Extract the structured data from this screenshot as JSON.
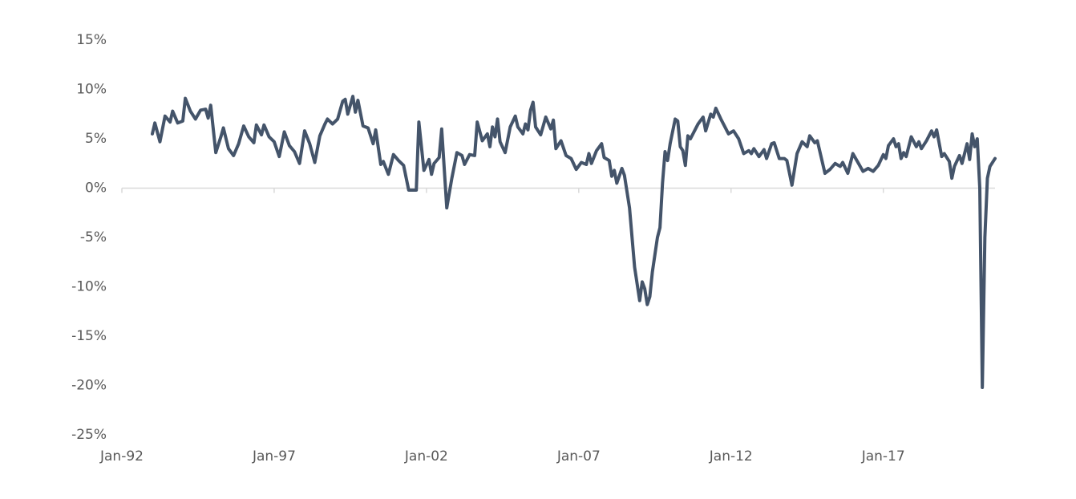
{
  "chart_data": {
    "type": "line",
    "color": "#44546a",
    "x": [
      "Jan-93",
      "Feb-93",
      "Apr-93",
      "Jun-93",
      "Aug-93",
      "Sep-93",
      "Nov-93",
      "Jan-94",
      "Feb-94",
      "Apr-94",
      "Jun-94",
      "Aug-94",
      "Oct-94",
      "Nov-94",
      "Dec-94",
      "Feb-95",
      "Apr-95",
      "May-95",
      "Jul-95",
      "Sep-95",
      "Nov-95",
      "Jan-96",
      "Mar-96",
      "May-96",
      "Jun-96",
      "Aug-96",
      "Sep-96",
      "Nov-96",
      "Jan-97",
      "Mar-97",
      "May-97",
      "Jul-97",
      "Sep-97",
      "Nov-97",
      "Jan-98",
      "Mar-98",
      "May-98",
      "Jul-98",
      "Sep-98",
      "Oct-98",
      "Dec-98",
      "Feb-99",
      "Apr-99",
      "May-99",
      "Jun-99",
      "Aug-99",
      "Sep-99",
      "Oct-99",
      "Dec-99",
      "Feb-00",
      "Apr-00",
      "May-00",
      "Jul-00",
      "Aug-00",
      "Oct-00",
      "Dec-00",
      "Feb-01",
      "Apr-01",
      "Jun-01",
      "Sep-01",
      "Oct-01",
      "Dec-01",
      "Feb-02",
      "Mar-02",
      "Apr-02",
      "Jun-02",
      "Jul-02",
      "Sep-02",
      "Nov-02",
      "Jan-03",
      "Mar-03",
      "Apr-03",
      "Jun-03",
      "Aug-03",
      "Sep-03",
      "Nov-03",
      "Jan-04",
      "Feb-04",
      "Mar-04",
      "Apr-04",
      "May-04",
      "Jun-04",
      "Aug-04",
      "Oct-04",
      "Dec-04",
      "Jan-05",
      "Mar-05",
      "Apr-05",
      "May-05",
      "Jun-05",
      "Jul-05",
      "Aug-05",
      "Oct-05",
      "Dec-05",
      "Feb-06",
      "Mar-06",
      "Apr-06",
      "Jun-06",
      "Aug-06",
      "Oct-06",
      "Dec-06",
      "Feb-07",
      "Apr-07",
      "May-07",
      "Jun-07",
      "Aug-07",
      "Oct-07",
      "Nov-07",
      "Jan-08",
      "Feb-08",
      "Mar-08",
      "Apr-08",
      "Jun-08",
      "Jul-08",
      "Sep-08",
      "Nov-08",
      "Jan-09",
      "Feb-09",
      "Mar-09",
      "Apr-09",
      "May-09",
      "Jun-09",
      "Aug-09",
      "Sep-09",
      "Oct-09",
      "Nov-09",
      "Dec-09",
      "Jan-10",
      "Mar-10",
      "Apr-10",
      "May-10",
      "Jun-10",
      "Jul-10",
      "Aug-10",
      "Sep-10",
      "Nov-10",
      "Dec-10",
      "Feb-11",
      "Mar-11",
      "May-11",
      "Jun-11",
      "Jul-11",
      "Sep-11",
      "Oct-11",
      "Dec-11",
      "Feb-12",
      "Apr-12",
      "Jun-12",
      "Aug-12",
      "Sep-12",
      "Oct-12",
      "Dec-12",
      "Feb-13",
      "Mar-13",
      "May-13",
      "Jun-13",
      "Aug-13",
      "Oct-13",
      "Nov-13",
      "Jan-14",
      "Mar-14",
      "May-14",
      "Jul-14",
      "Aug-14",
      "Oct-14",
      "Nov-14",
      "Feb-15",
      "Apr-15",
      "Jun-15",
      "Aug-15",
      "Sep-15",
      "Nov-15",
      "Jan-16",
      "Mar-16",
      "May-16",
      "Jul-16",
      "Sep-16",
      "Nov-16",
      "Jan-17",
      "Feb-17",
      "Mar-17",
      "May-17",
      "Jun-17",
      "Jul-17",
      "Aug-17",
      "Sep-17",
      "Oct-17",
      "Dec-17",
      "Feb-18",
      "Mar-18",
      "Apr-18",
      "Jun-18",
      "Aug-18",
      "Sep-18",
      "Oct-18",
      "Dec-18",
      "Jan-19",
      "Mar-19",
      "Apr-19",
      "May-19",
      "Jul-19",
      "Aug-19",
      "Sep-19",
      "Oct-19",
      "Nov-19",
      "Dec-19",
      "Jan-20",
      "Feb-20",
      "Mar-20",
      "Apr-20",
      "May-20",
      "Jun-20",
      "Jul-20",
      "Aug-20",
      "Sep-20"
    ],
    "values": [
      5.5,
      6.6,
      4.7,
      7.3,
      6.7,
      7.8,
      6.6,
      6.8,
      9.1,
      7.8,
      7.0,
      7.9,
      8.0,
      7.1,
      8.4,
      3.6,
      5.2,
      6.1,
      4.0,
      3.3,
      4.5,
      6.3,
      5.2,
      4.6,
      6.4,
      5.4,
      6.4,
      5.2,
      4.7,
      3.2,
      5.7,
      4.3,
      3.7,
      2.5,
      5.8,
      4.5,
      2.6,
      5.3,
      6.5,
      7.0,
      6.5,
      7.0,
      8.8,
      9.0,
      7.5,
      9.3,
      7.7,
      8.9,
      6.3,
      6.1,
      4.5,
      5.9,
      2.4,
      2.7,
      1.4,
      3.4,
      2.8,
      2.3,
      -0.2,
      -0.2,
      6.7,
      1.8,
      2.9,
      1.4,
      2.5,
      3.1,
      6.0,
      -2.0,
      1.0,
      3.6,
      3.3,
      2.4,
      3.4,
      3.3,
      6.7,
      4.8,
      5.5,
      4.2,
      6.2,
      5.2,
      7.0,
      4.7,
      3.6,
      6.2,
      7.3,
      6.2,
      5.5,
      6.5,
      5.9,
      7.9,
      8.7,
      6.2,
      5.4,
      7.2,
      6.0,
      6.9,
      4.0,
      4.8,
      3.3,
      3.0,
      1.9,
      2.6,
      2.4,
      3.5,
      2.5,
      3.8,
      4.5,
      3.1,
      2.8,
      1.2,
      1.8,
      0.5,
      2.0,
      1.3,
      -2.0,
      -8.0,
      -11.4,
      -9.5,
      -10.2,
      -11.8,
      -11.0,
      -8.5,
      -5.0,
      -4.0,
      0.5,
      3.7,
      2.8,
      4.5,
      7.0,
      6.8,
      4.2,
      3.8,
      2.3,
      5.3,
      5.0,
      6.0,
      6.5,
      7.2,
      5.8,
      7.5,
      7.2,
      8.1,
      7.0,
      6.5,
      5.5,
      5.8,
      5.0,
      3.5,
      3.8,
      3.5,
      4.0,
      3.2,
      3.9,
      3.0,
      4.5,
      4.6,
      3.0,
      3.0,
      2.8,
      0.3,
      3.5,
      4.7,
      4.2,
      5.3,
      4.6,
      4.8,
      1.5,
      1.9,
      2.5,
      2.2,
      2.6,
      1.5,
      3.5,
      2.6,
      1.7,
      2.0,
      1.7,
      2.3,
      3.4,
      3.0,
      4.3,
      5.0,
      4.2,
      4.5,
      3.0,
      3.6,
      3.2,
      5.2,
      4.2,
      4.7,
      4.0,
      4.8,
      5.8,
      5.2,
      5.9,
      3.2,
      3.5,
      2.7,
      1.0,
      2.2,
      3.3,
      2.5,
      3.5,
      4.5,
      2.9,
      5.5,
      4.2,
      5.0,
      0.0,
      -20.2,
      -5.0,
      1.0,
      2.2,
      2.6,
      3.0
    ],
    "xlim": [
      "Jan-92",
      "Sep-20"
    ],
    "xticks": [
      "Jan-92",
      "Jan-97",
      "Jan-02",
      "Jan-07",
      "Jan-12",
      "Jan-17"
    ],
    "ylim": [
      -25,
      15
    ],
    "yticks": [
      {
        "value": -25,
        "label": "-25%"
      },
      {
        "value": -20,
        "label": "-20%"
      },
      {
        "value": -15,
        "label": "-15%"
      },
      {
        "value": -10,
        "label": "-10%"
      },
      {
        "value": -5,
        "label": "-5%"
      },
      {
        "value": 0,
        "label": "0%"
      },
      {
        "value": 5,
        "label": "5%"
      },
      {
        "value": 10,
        "label": "10%"
      },
      {
        "value": 15,
        "label": "15%"
      }
    ]
  }
}
